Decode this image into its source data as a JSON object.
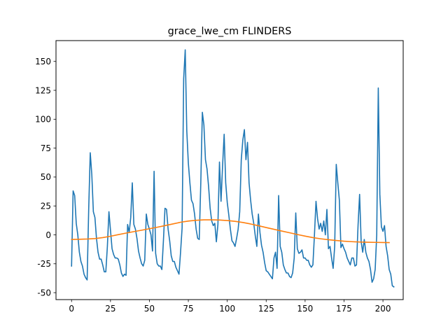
{
  "chart_data": {
    "type": "line",
    "title": "grace_lwe_cm FLINDERS",
    "xlabel": "",
    "ylabel": "",
    "xlim": [
      -10,
      213
    ],
    "ylim": [
      -56,
      168
    ],
    "xticks": [
      0,
      25,
      50,
      75,
      100,
      125,
      150,
      175,
      200
    ],
    "yticks": [
      -50,
      -25,
      0,
      25,
      50,
      75,
      100,
      125,
      150
    ],
    "grid": false,
    "legend": "none",
    "series": [
      {
        "color": "#1f77b4",
        "values": [
          -27,
          38,
          34,
          10,
          0,
          -15,
          -23,
          -27,
          -34,
          -37,
          -39,
          22,
          71,
          52,
          20,
          15,
          -3,
          -15,
          -21,
          -21,
          -26,
          -32,
          -32,
          -10,
          20,
          4,
          -12,
          -17,
          -20,
          -20,
          -21,
          -26,
          -33,
          -36,
          -34,
          -35,
          9,
          2,
          15,
          45,
          9,
          5,
          -3,
          -14,
          -20,
          -25,
          -27,
          -22,
          18,
          9,
          5,
          0,
          -14,
          55,
          -16,
          -25,
          -27,
          -27,
          -30,
          -5,
          23,
          22,
          5,
          -5,
          -18,
          -23,
          -23,
          -28,
          -31,
          -34,
          -15,
          6,
          135,
          160,
          90,
          62,
          45,
          30,
          27,
          18,
          5,
          -3,
          -4,
          45,
          106,
          95,
          65,
          57,
          42,
          23,
          12,
          8,
          10,
          -6,
          9,
          63,
          29,
          60,
          87,
          45,
          28,
          17,
          5,
          -5,
          -7,
          -10,
          -3,
          5,
          20,
          65,
          82,
          91,
          65,
          80,
          45,
          30,
          18,
          10,
          -1,
          -10,
          18,
          2,
          -9,
          -15,
          -24,
          -31,
          -32,
          -34,
          -36,
          -38,
          -20,
          -15,
          -29,
          34,
          -10,
          -15,
          -26,
          -30,
          -33,
          -33,
          -36,
          -37,
          -33,
          -20,
          19,
          -12,
          -16,
          -15,
          -13,
          -20,
          -20,
          -22,
          -22,
          -26,
          -28,
          -26,
          0,
          29,
          14,
          5,
          10,
          3,
          12,
          0,
          22,
          -12,
          -10,
          -20,
          -29,
          -10,
          61,
          45,
          30,
          -11,
          -8,
          -12,
          -15,
          -20,
          -23,
          -26,
          -20,
          -20,
          -27,
          -26,
          8,
          35,
          -6,
          -15,
          -4,
          -15,
          -20,
          -23,
          -30,
          -41,
          -38,
          -30,
          0,
          127,
          35,
          7,
          3,
          8,
          -10,
          -18,
          -30,
          -34,
          -44,
          -45
        ]
      },
      {
        "color": "#ff7f0e",
        "x": [
          0,
          5,
          10,
          15,
          20,
          25,
          30,
          35,
          40,
          45,
          50,
          55,
          60,
          65,
          70,
          75,
          80,
          85,
          90,
          95,
          100,
          105,
          110,
          115,
          120,
          125,
          130,
          135,
          140,
          145,
          150,
          155,
          160,
          165,
          170,
          175,
          180,
          185,
          190,
          195,
          200,
          204
        ],
        "values": [
          -4,
          -3.8,
          -3.6,
          -3.2,
          -2.4,
          -1.2,
          0.2,
          1.5,
          2.8,
          4,
          5.3,
          6.6,
          8,
          9.4,
          10.9,
          11.9,
          12.6,
          13,
          13,
          12.8,
          12.4,
          11.7,
          10.7,
          9.4,
          7.9,
          6.3,
          4.8,
          3.3,
          1.8,
          0.3,
          -1.1,
          -2.4,
          -3.4,
          -4.2,
          -4.9,
          -5.5,
          -5.9,
          -6.2,
          -6.4,
          -6.5,
          -6.6,
          -6.7
        ]
      }
    ]
  }
}
